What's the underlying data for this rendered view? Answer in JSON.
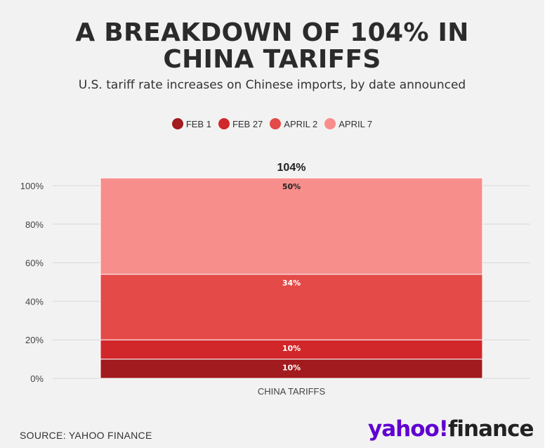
{
  "title": "A BREAKDOWN OF 104% IN CHINA TARIFFS",
  "subtitle": "U.S. tariff rate increases on Chinese imports, by date announced",
  "source": "SOURCE: YAHOO FINANCE",
  "logo": {
    "left": "yahoo",
    "mark": "!",
    "right": "finance"
  },
  "colors": {
    "background": "#f2f2f2",
    "gridline": "#d8d8d8",
    "text": "#2b2b2b",
    "logo_purple": "#6001d2"
  },
  "chart_data": {
    "type": "bar",
    "stacked": true,
    "categories": [
      "CHINA TARIFFS"
    ],
    "total_label": "104%",
    "series": [
      {
        "name": "FEB 1",
        "values": [
          10
        ],
        "label": "10%",
        "color": "#a21b1e",
        "label_color": "#ffffff"
      },
      {
        "name": "FEB 27",
        "values": [
          10
        ],
        "label": "10%",
        "color": "#d2272a",
        "label_color": "#ffffff"
      },
      {
        "name": "APRIL 2",
        "values": [
          34
        ],
        "label": "34%",
        "color": "#e44a48",
        "label_color": "#ffffff"
      },
      {
        "name": "APRIL 7",
        "values": [
          50
        ],
        "label": "50%",
        "color": "#f78e8c",
        "label_color": "#222222"
      }
    ],
    "yticks": [
      0,
      20,
      40,
      60,
      80,
      100
    ],
    "ytick_labels": [
      "0%",
      "20%",
      "40%",
      "60%",
      "80%",
      "100%"
    ],
    "ylim": [
      0,
      104
    ],
    "xlabel": "",
    "ylabel": "",
    "grid": true,
    "legend_position": "top-center"
  }
}
